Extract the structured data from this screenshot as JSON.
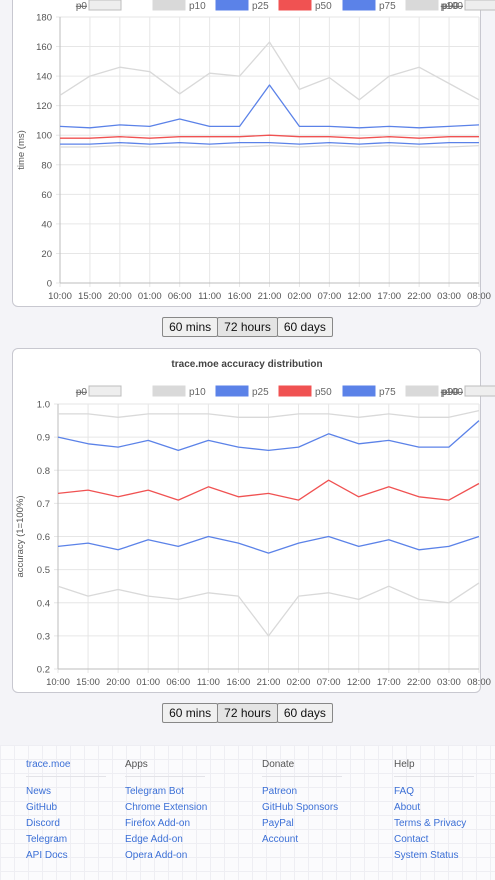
{
  "colors": {
    "p0": "#bdbdbd",
    "p10": "#d9d9d9",
    "p25": "#5b82e8",
    "p50": "#f05252",
    "p75": "#5b82e8",
    "p90": "#d9d9d9",
    "p100": "#bdbdbd"
  },
  "tabs": [
    "60 mins",
    "72 hours",
    "60 days"
  ],
  "active_tab": "72 hours",
  "chart_data": [
    {
      "type": "line",
      "title": "",
      "xlabel": "",
      "ylabel": "time (ms)",
      "ylim": [
        0,
        180
      ],
      "yticks": [
        "0",
        "20",
        "40",
        "60",
        "80",
        "100",
        "120",
        "140",
        "160",
        "180"
      ],
      "x": [
        "10:00",
        "15:00",
        "20:00",
        "01:00",
        "06:00",
        "11:00",
        "16:00",
        "21:00",
        "02:00",
        "07:00",
        "12:00",
        "17:00",
        "22:00",
        "03:00",
        "08:00"
      ],
      "legend": [
        {
          "name": "p0",
          "hidden": true
        },
        {
          "name": "p10",
          "hidden": false
        },
        {
          "name": "p25",
          "hidden": false
        },
        {
          "name": "p50",
          "hidden": false
        },
        {
          "name": "p75",
          "hidden": false
        },
        {
          "name": "p90",
          "hidden": false
        },
        {
          "name": "p100",
          "hidden": true
        }
      ],
      "series": [
        {
          "name": "p10",
          "values": [
            92,
            92,
            93,
            92,
            92,
            92,
            92,
            93,
            92,
            93,
            92,
            93,
            92,
            92,
            93
          ]
        },
        {
          "name": "p25",
          "values": [
            94,
            94,
            95,
            94,
            95,
            94,
            95,
            95,
            94,
            95,
            94,
            95,
            94,
            95,
            95
          ]
        },
        {
          "name": "p50",
          "values": [
            98,
            98,
            99,
            98,
            99,
            99,
            99,
            100,
            99,
            99,
            98,
            99,
            98,
            99,
            99
          ]
        },
        {
          "name": "p75",
          "values": [
            106,
            105,
            107,
            106,
            111,
            106,
            106,
            134,
            106,
            106,
            105,
            106,
            105,
            106,
            107
          ]
        },
        {
          "name": "p90",
          "values": [
            127,
            140,
            146,
            143,
            128,
            142,
            140,
            163,
            131,
            139,
            124,
            140,
            146,
            135,
            124
          ]
        }
      ]
    },
    {
      "type": "line",
      "title": "trace.moe accuracy distribution",
      "xlabel": "",
      "ylabel": "accuracy (1=100%)",
      "ylim": [
        0.2,
        1.0
      ],
      "yticks": [
        "0.2",
        "0.3",
        "0.4",
        "0.5",
        "0.6",
        "0.7",
        "0.8",
        "0.9",
        "1.0"
      ],
      "x": [
        "10:00",
        "15:00",
        "20:00",
        "01:00",
        "06:00",
        "11:00",
        "16:00",
        "21:00",
        "02:00",
        "07:00",
        "12:00",
        "17:00",
        "22:00",
        "03:00",
        "08:00"
      ],
      "legend": [
        {
          "name": "p0",
          "hidden": true
        },
        {
          "name": "p10",
          "hidden": false
        },
        {
          "name": "p25",
          "hidden": false
        },
        {
          "name": "p50",
          "hidden": false
        },
        {
          "name": "p75",
          "hidden": false
        },
        {
          "name": "p90",
          "hidden": false
        },
        {
          "name": "p100",
          "hidden": true
        }
      ],
      "series": [
        {
          "name": "p10",
          "values": [
            0.45,
            0.42,
            0.44,
            0.42,
            0.41,
            0.43,
            0.42,
            0.3,
            0.42,
            0.43,
            0.41,
            0.45,
            0.41,
            0.4,
            0.46
          ]
        },
        {
          "name": "p25",
          "values": [
            0.57,
            0.58,
            0.56,
            0.59,
            0.57,
            0.6,
            0.58,
            0.55,
            0.58,
            0.6,
            0.57,
            0.59,
            0.56,
            0.57,
            0.6
          ]
        },
        {
          "name": "p50",
          "values": [
            0.73,
            0.74,
            0.72,
            0.74,
            0.71,
            0.75,
            0.72,
            0.73,
            0.71,
            0.77,
            0.72,
            0.75,
            0.72,
            0.71,
            0.76
          ]
        },
        {
          "name": "p75",
          "values": [
            0.9,
            0.88,
            0.87,
            0.89,
            0.86,
            0.89,
            0.87,
            0.86,
            0.87,
            0.91,
            0.88,
            0.89,
            0.87,
            0.87,
            0.95
          ]
        },
        {
          "name": "p90",
          "values": [
            0.97,
            0.97,
            0.96,
            0.97,
            0.97,
            0.97,
            0.96,
            0.96,
            0.97,
            0.97,
            0.96,
            0.97,
            0.96,
            0.96,
            0.98
          ]
        }
      ]
    }
  ],
  "footer": {
    "columns": [
      {
        "heading": "trace.moe",
        "links": [
          "News",
          "GitHub",
          "Discord",
          "Telegram",
          "API Docs"
        ]
      },
      {
        "heading": "Apps",
        "links": [
          "Telegram Bot",
          "Chrome Extension",
          "Firefox Add-on",
          "Edge Add-on",
          "Opera Add-on"
        ]
      },
      {
        "heading": "Donate",
        "links": [
          "Patreon",
          "GitHub Sponsors",
          "PayPal",
          "Account"
        ]
      },
      {
        "heading": "Help",
        "links": [
          "FAQ",
          "About",
          "Terms & Privacy",
          "Contact",
          "System Status"
        ]
      }
    ]
  }
}
